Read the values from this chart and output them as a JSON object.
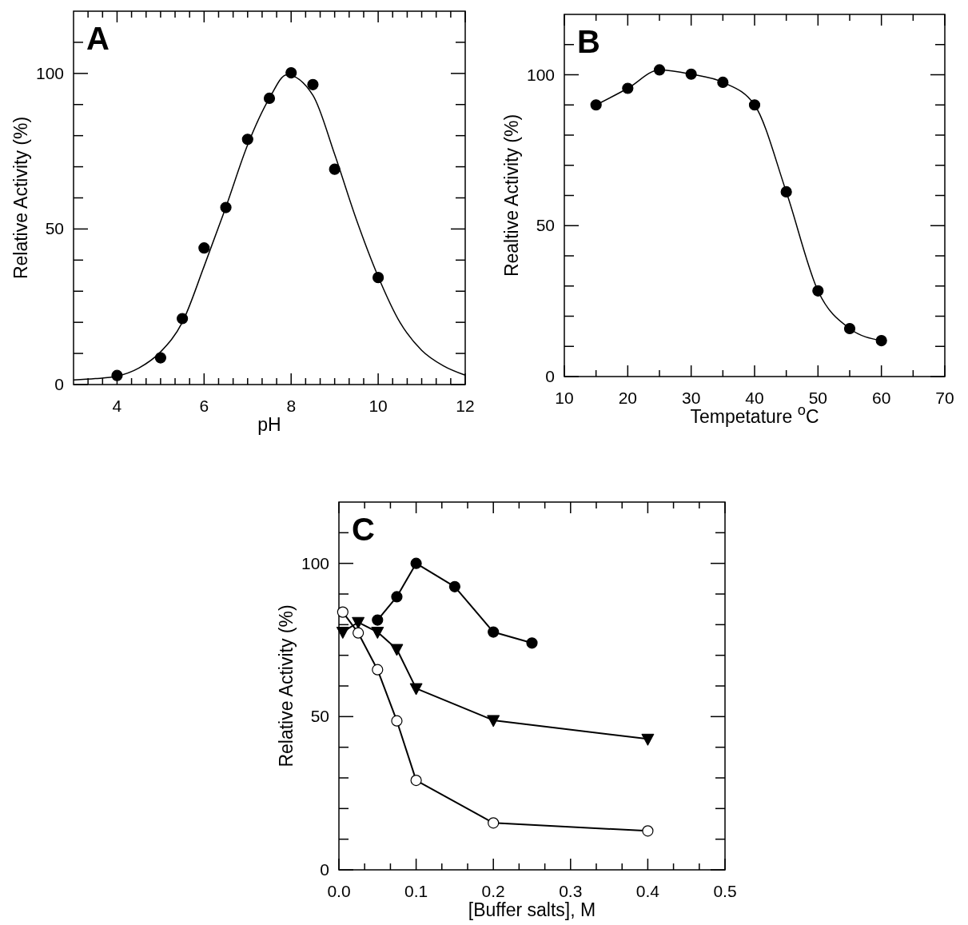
{
  "chart_data": [
    {
      "type": "scatter",
      "title": "A",
      "xlabel": "pH",
      "ylabel": "Relative Activity (%)",
      "xlim": [
        3,
        12
      ],
      "ylim": [
        0,
        120
      ],
      "xticks": [
        {
          "value": 3.333,
          "label": null
        },
        {
          "value": 3.667,
          "label": null
        },
        4,
        {
          "value": 4.333,
          "label": null
        },
        {
          "value": 4.667,
          "label": null
        },
        {
          "value": 5,
          "label": null
        },
        {
          "value": 5.333,
          "label": null
        },
        {
          "value": 5.667,
          "label": null
        },
        6,
        {
          "value": 6.333,
          "label": null
        },
        {
          "value": 6.667,
          "label": null
        },
        {
          "value": 7,
          "label": null
        },
        {
          "value": 7.333,
          "label": null
        },
        {
          "value": 7.667,
          "label": null
        },
        8,
        {
          "value": 8.333,
          "label": null
        },
        {
          "value": 8.667,
          "label": null
        },
        {
          "value": 9,
          "label": null
        },
        {
          "value": 9.333,
          "label": null
        },
        {
          "value": 9.667,
          "label": null
        },
        10,
        {
          "value": 10.333,
          "label": null
        },
        {
          "value": 10.667,
          "label": null
        },
        {
          "value": 11,
          "label": null
        },
        {
          "value": 11.333,
          "label": null
        },
        {
          "value": 11.667,
          "label": null
        },
        12
      ],
      "yticks": [
        0,
        {
          "value": 10,
          "label": null
        },
        {
          "value": 20,
          "label": null
        },
        {
          "value": 30,
          "label": null
        },
        {
          "value": 40,
          "label": null
        },
        50,
        {
          "value": 60,
          "label": null
        },
        {
          "value": 70,
          "label": null
        },
        {
          "value": 80,
          "label": null
        },
        {
          "value": 90,
          "label": null
        },
        100,
        {
          "value": 110,
          "label": null
        }
      ],
      "marker": "circle",
      "series": [
        {
          "type": "scatter",
          "color": "#000000",
          "x": [
            4,
            5,
            5.5,
            6,
            6.5,
            7,
            7.5,
            8,
            8.5,
            9,
            10
          ],
          "values": [
            2.9,
            8.6,
            21.2,
            43.9,
            56.9,
            78.8,
            92,
            100.2,
            96.4,
            69.2,
            34.4
          ]
        },
        {
          "type": "line",
          "marker": "none",
          "color": "#000000",
          "x": [
            3,
            3.5,
            4,
            4.5,
            5,
            5.5,
            6,
            6.5,
            7,
            7.5,
            7.9,
            8.5,
            9,
            9.5,
            10,
            10.5,
            11,
            11.5,
            12
          ],
          "values": [
            1.5,
            1.9,
            2.7,
            5.3,
            10.5,
            20,
            38,
            57,
            77,
            92,
            99.6,
            93,
            74,
            53,
            34.7,
            20,
            11,
            6,
            3
          ]
        }
      ]
    },
    {
      "type": "line",
      "title": "B",
      "xlabel": "Tempetature $^{o}$C",
      "ylabel": "Realtive Activity (%)",
      "xlim": [
        10,
        70
      ],
      "ylim": [
        0,
        120
      ],
      "xticks": [
        10,
        {
          "value": 15,
          "label": null
        },
        20,
        {
          "value": 25,
          "label": null
        },
        30,
        {
          "value": 35,
          "label": null
        },
        40,
        {
          "value": 45,
          "label": null
        },
        50,
        {
          "value": 55,
          "label": null
        },
        60,
        {
          "value": 65,
          "label": null
        },
        70
      ],
      "yticks": [
        0,
        {
          "value": 10,
          "label": null
        },
        {
          "value": 20,
          "label": null
        },
        {
          "value": 30,
          "label": null
        },
        {
          "value": 40,
          "label": null
        },
        50,
        {
          "value": 60,
          "label": null
        },
        {
          "value": 70,
          "label": null
        },
        {
          "value": 80,
          "label": null
        },
        {
          "value": 90,
          "label": null
        },
        100,
        {
          "value": 110,
          "label": null
        }
      ],
      "marker": "circle",
      "series": [
        {
          "color": "#000000",
          "x": [
            15,
            20,
            25,
            30,
            35,
            40,
            45,
            50,
            55,
            60
          ],
          "values": [
            90,
            95.5,
            101.6,
            100.2,
            97.5,
            90,
            61.2,
            28.4,
            15.9,
            11.9
          ]
        }
      ]
    },
    {
      "type": "line",
      "title": "C",
      "xlabel": "[Buffer salts], M",
      "ylabel": "Relative Activity (%)",
      "xlim": [
        0,
        0.5
      ],
      "ylim": [
        0,
        120
      ],
      "xticks": [
        {
          "value": 0,
          "label": "0.0"
        },
        {
          "value": 0.0333,
          "label": null
        },
        {
          "value": 0.0667,
          "label": null
        },
        0.1,
        {
          "value": 0.1333,
          "label": null
        },
        {
          "value": 0.1667,
          "label": null
        },
        0.2,
        {
          "value": 0.2333,
          "label": null
        },
        {
          "value": 0.2667,
          "label": null
        },
        0.3,
        {
          "value": 0.3333,
          "label": null
        },
        {
          "value": 0.3667,
          "label": null
        },
        0.4,
        {
          "value": 0.4333,
          "label": null
        },
        {
          "value": 0.4667,
          "label": null
        },
        0.5
      ],
      "yticks": [
        0,
        {
          "value": 10,
          "label": null
        },
        {
          "value": 20,
          "label": null
        },
        {
          "value": 30,
          "label": null
        },
        {
          "value": 40,
          "label": null
        },
        50,
        {
          "value": 60,
          "label": null
        },
        {
          "value": 70,
          "label": null
        },
        {
          "value": 80,
          "label": null
        },
        {
          "value": 90,
          "label": null
        },
        100,
        {
          "value": 110,
          "label": null
        }
      ],
      "series": [
        {
          "marker": "circle",
          "color": "#000000",
          "x": [
            0.05,
            0.075,
            0.1,
            0.15,
            0.2,
            0.25
          ],
          "values": [
            81.5,
            89.1,
            100,
            92.4,
            77.6,
            74
          ]
        },
        {
          "marker": "triangle",
          "color": "#000000",
          "x": [
            0.005,
            0.025,
            0.05,
            0.075,
            0.1,
            0.2,
            0.4
          ],
          "values": [
            77.6,
            80.8,
            77.6,
            72,
            59.2,
            48.8,
            42.7
          ]
        },
        {
          "marker": "circle",
          "color": "#ffffff",
          "x": [
            0.005,
            0.025,
            0.05,
            0.075,
            0.1,
            0.2,
            0.4
          ],
          "values": [
            84.1,
            77.3,
            65.3,
            48.6,
            29.2,
            15.3,
            12.7
          ]
        }
      ]
    }
  ]
}
